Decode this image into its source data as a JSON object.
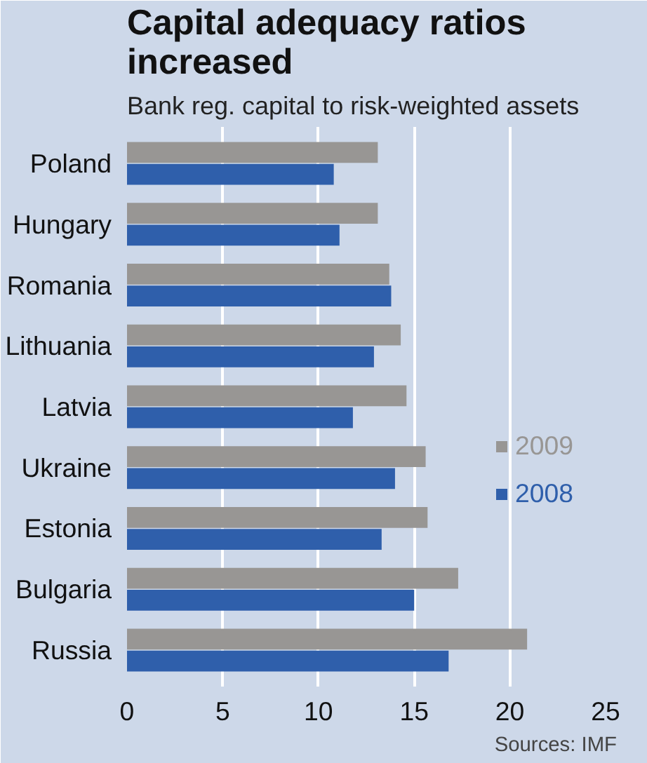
{
  "chart_data": {
    "type": "bar",
    "orientation": "horizontal",
    "title": "Capital adequacy ratios increased",
    "subtitle": "Bank reg. capital to risk-weighted assets",
    "categories": [
      "Poland",
      "Hungary",
      "Romania",
      "Lithuania",
      "Latvia",
      "Ukraine",
      "Estonia",
      "Bulgaria",
      "Russia"
    ],
    "series": [
      {
        "name": "2009",
        "color": "#989694",
        "values": [
          13.1,
          13.1,
          13.7,
          14.3,
          14.6,
          15.6,
          15.7,
          17.3,
          20.9
        ]
      },
      {
        "name": "2008",
        "color": "#2f5fab",
        "values": [
          10.8,
          11.1,
          13.8,
          12.9,
          11.8,
          14.0,
          13.3,
          15.0,
          16.8
        ]
      }
    ],
    "xlim": [
      0,
      25
    ],
    "xticks": [
      0,
      5,
      10,
      15,
      20,
      25
    ],
    "grid": "x",
    "legend": "right",
    "annotations": [
      "Sources: IMF"
    ]
  }
}
